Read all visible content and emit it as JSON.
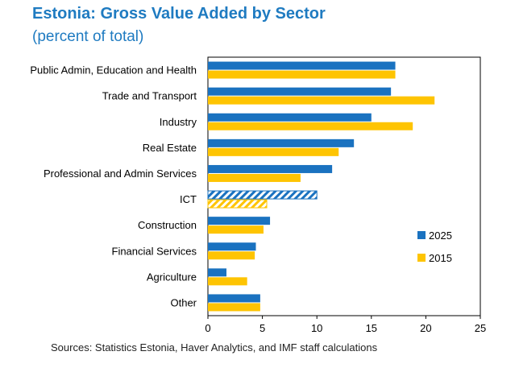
{
  "title": "Estonia: Gross Value Added by Sector",
  "subtitle": "(percent of total)",
  "source": "Sources: Statistics Estonia, Haver Analytics, and IMF staff calculations",
  "colors": {
    "series_2025": "#1a72c0",
    "series_2015": "#fec402",
    "title": "#1f7bc1"
  },
  "chart_data": {
    "type": "bar",
    "orientation": "horizontal",
    "title": "Estonia: Gross Value Added by Sector",
    "subtitle": "(percent of total)",
    "categories": [
      "Public Admin, Education and Health",
      "Trade and Transport",
      "Industry",
      "Real Estate",
      "Professional and Admin Services",
      "ICT",
      "Construction",
      "Financial Services",
      "Agriculture",
      "Other"
    ],
    "series": [
      {
        "name": "2025",
        "values": [
          17.2,
          16.8,
          15.0,
          13.4,
          11.4,
          10.0,
          5.7,
          4.4,
          1.7,
          4.8
        ]
      },
      {
        "name": "2015",
        "values": [
          17.2,
          20.8,
          18.8,
          12.0,
          8.5,
          5.4,
          5.1,
          4.3,
          3.6,
          4.8
        ]
      }
    ],
    "hatched_category": "ICT",
    "xlim": [
      0,
      25
    ],
    "xticks": [
      0,
      5,
      10,
      15,
      20,
      25
    ],
    "grid": false,
    "legend_position": "right"
  }
}
